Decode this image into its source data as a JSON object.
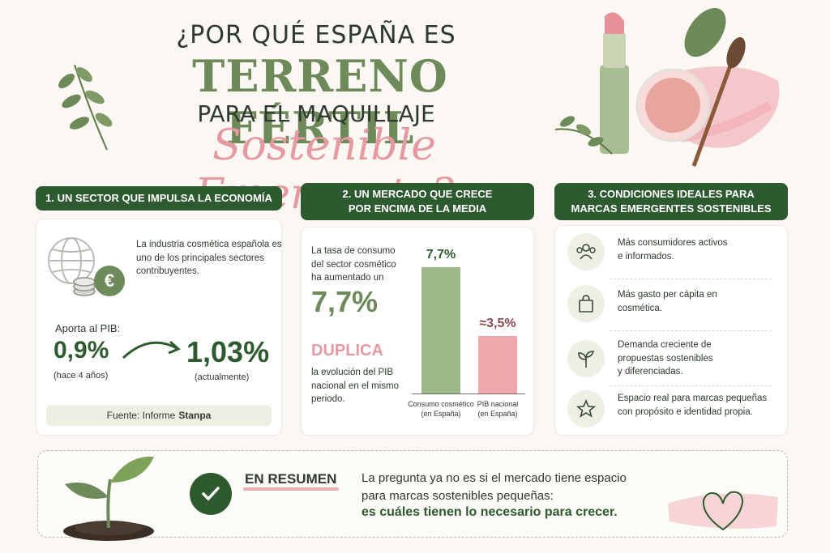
{
  "header": {
    "line1": "¿POR QUÉ ESPAÑA ES",
    "line2": "TERRENO FÉRTIL",
    "line3": "PARA EL MAQUILLAJE",
    "line4": "Sostenible Emergente?"
  },
  "section1": {
    "heading": "1. UN SECTOR QUE IMPULSA LA ECONOMÍA",
    "text": "La industria cosmética española es uno de los principales sectores contribuyentes.",
    "aporta_label": "Aporta al PIB:",
    "value_before": "0,9%",
    "value_before_note": "(hace 4 años)",
    "value_after": "1,03%",
    "value_after_note": "(actualmente)",
    "source_label": "Fuente: Informe",
    "source_name": "Stanpa",
    "icons": [
      "globe-icon",
      "coins-icon",
      "euro-icon"
    ]
  },
  "section2": {
    "heading_line1": "2. UN MERCADO QUE CRECE",
    "heading_line2": "POR ENCIMA DE LA MEDIA",
    "text1": "La tasa de consumo del sector cosmético ha aumentado un",
    "big_value": "7,7%",
    "duplica": "DUPLICA",
    "text2": "la evolución del PIB nacional en el mismo periodo."
  },
  "chart_data": {
    "type": "bar",
    "categories": [
      "Consumo cosmético (en España)",
      "PIB nacional (en España)"
    ],
    "category_lines": [
      [
        "Consumo cosmético",
        "(en España)"
      ],
      [
        "PIB nacional",
        "(en España)"
      ]
    ],
    "values": [
      7.7,
      3.5
    ],
    "data_labels": [
      "7,7%",
      "≈3,5%"
    ],
    "colors": [
      "#9fb88a",
      "#f0a6ad"
    ],
    "ylim": [
      0,
      8
    ]
  },
  "section3": {
    "heading_line1": "3. CONDICIONES IDEALES PARA",
    "heading_line2": "MARCAS EMERGENTES SOSTENIBLES",
    "items": [
      {
        "icon": "people-icon",
        "lines": [
          "Más consumidores activos",
          "e informados."
        ]
      },
      {
        "icon": "shopping-bag-icon",
        "lines": [
          "Más gasto per cápita en",
          "cosmética."
        ]
      },
      {
        "icon": "sprout-icon",
        "lines": [
          "Demanda creciente de",
          "propuestas sostenibles",
          "y diferenciadas."
        ]
      },
      {
        "icon": "star-icon",
        "lines": [
          "Espacio real para marcas pequeñas",
          "con propósito e identidad propia."
        ]
      }
    ]
  },
  "summary": {
    "title": "EN RESUMEN",
    "line1": "La pregunta ya no es si el mercado tiene espacio",
    "line2": "para marcas sostenibles pequeñas:",
    "line3": "es cuáles tienen lo necesario para crecer.",
    "icons": [
      "plant-icon",
      "check-icon",
      "heart-icon"
    ]
  },
  "colors": {
    "dark_green": "#2e5a30",
    "sage": "#6f8a5a",
    "pink": "#e59aa3",
    "background": "#fbf8f4"
  }
}
